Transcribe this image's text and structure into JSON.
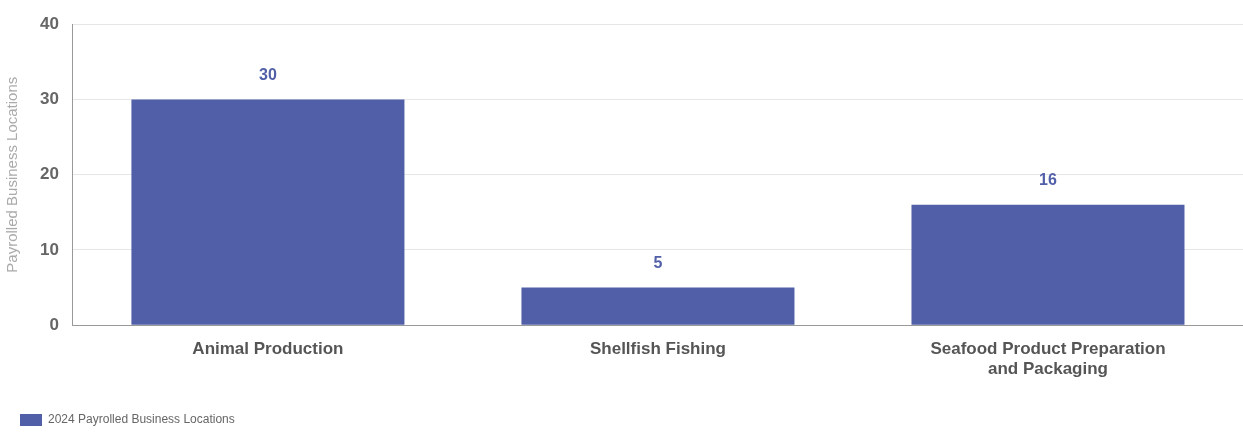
{
  "chart_data": {
    "type": "bar",
    "ylabel": "Payrolled Business Locations",
    "categories": [
      "Animal Production",
      "Shellfish Fishing",
      "Seafood Product Preparation and Packaging"
    ],
    "series": [
      {
        "name": "2024 Payrolled Business Locations",
        "color": "#515fa8",
        "values": [
          30,
          5,
          16
        ]
      }
    ],
    "ylim": [
      0,
      40
    ],
    "yticks": [
      0,
      10,
      20,
      30,
      40
    ],
    "grid": "y",
    "legend": "bottom left",
    "data_labels": true
  }
}
